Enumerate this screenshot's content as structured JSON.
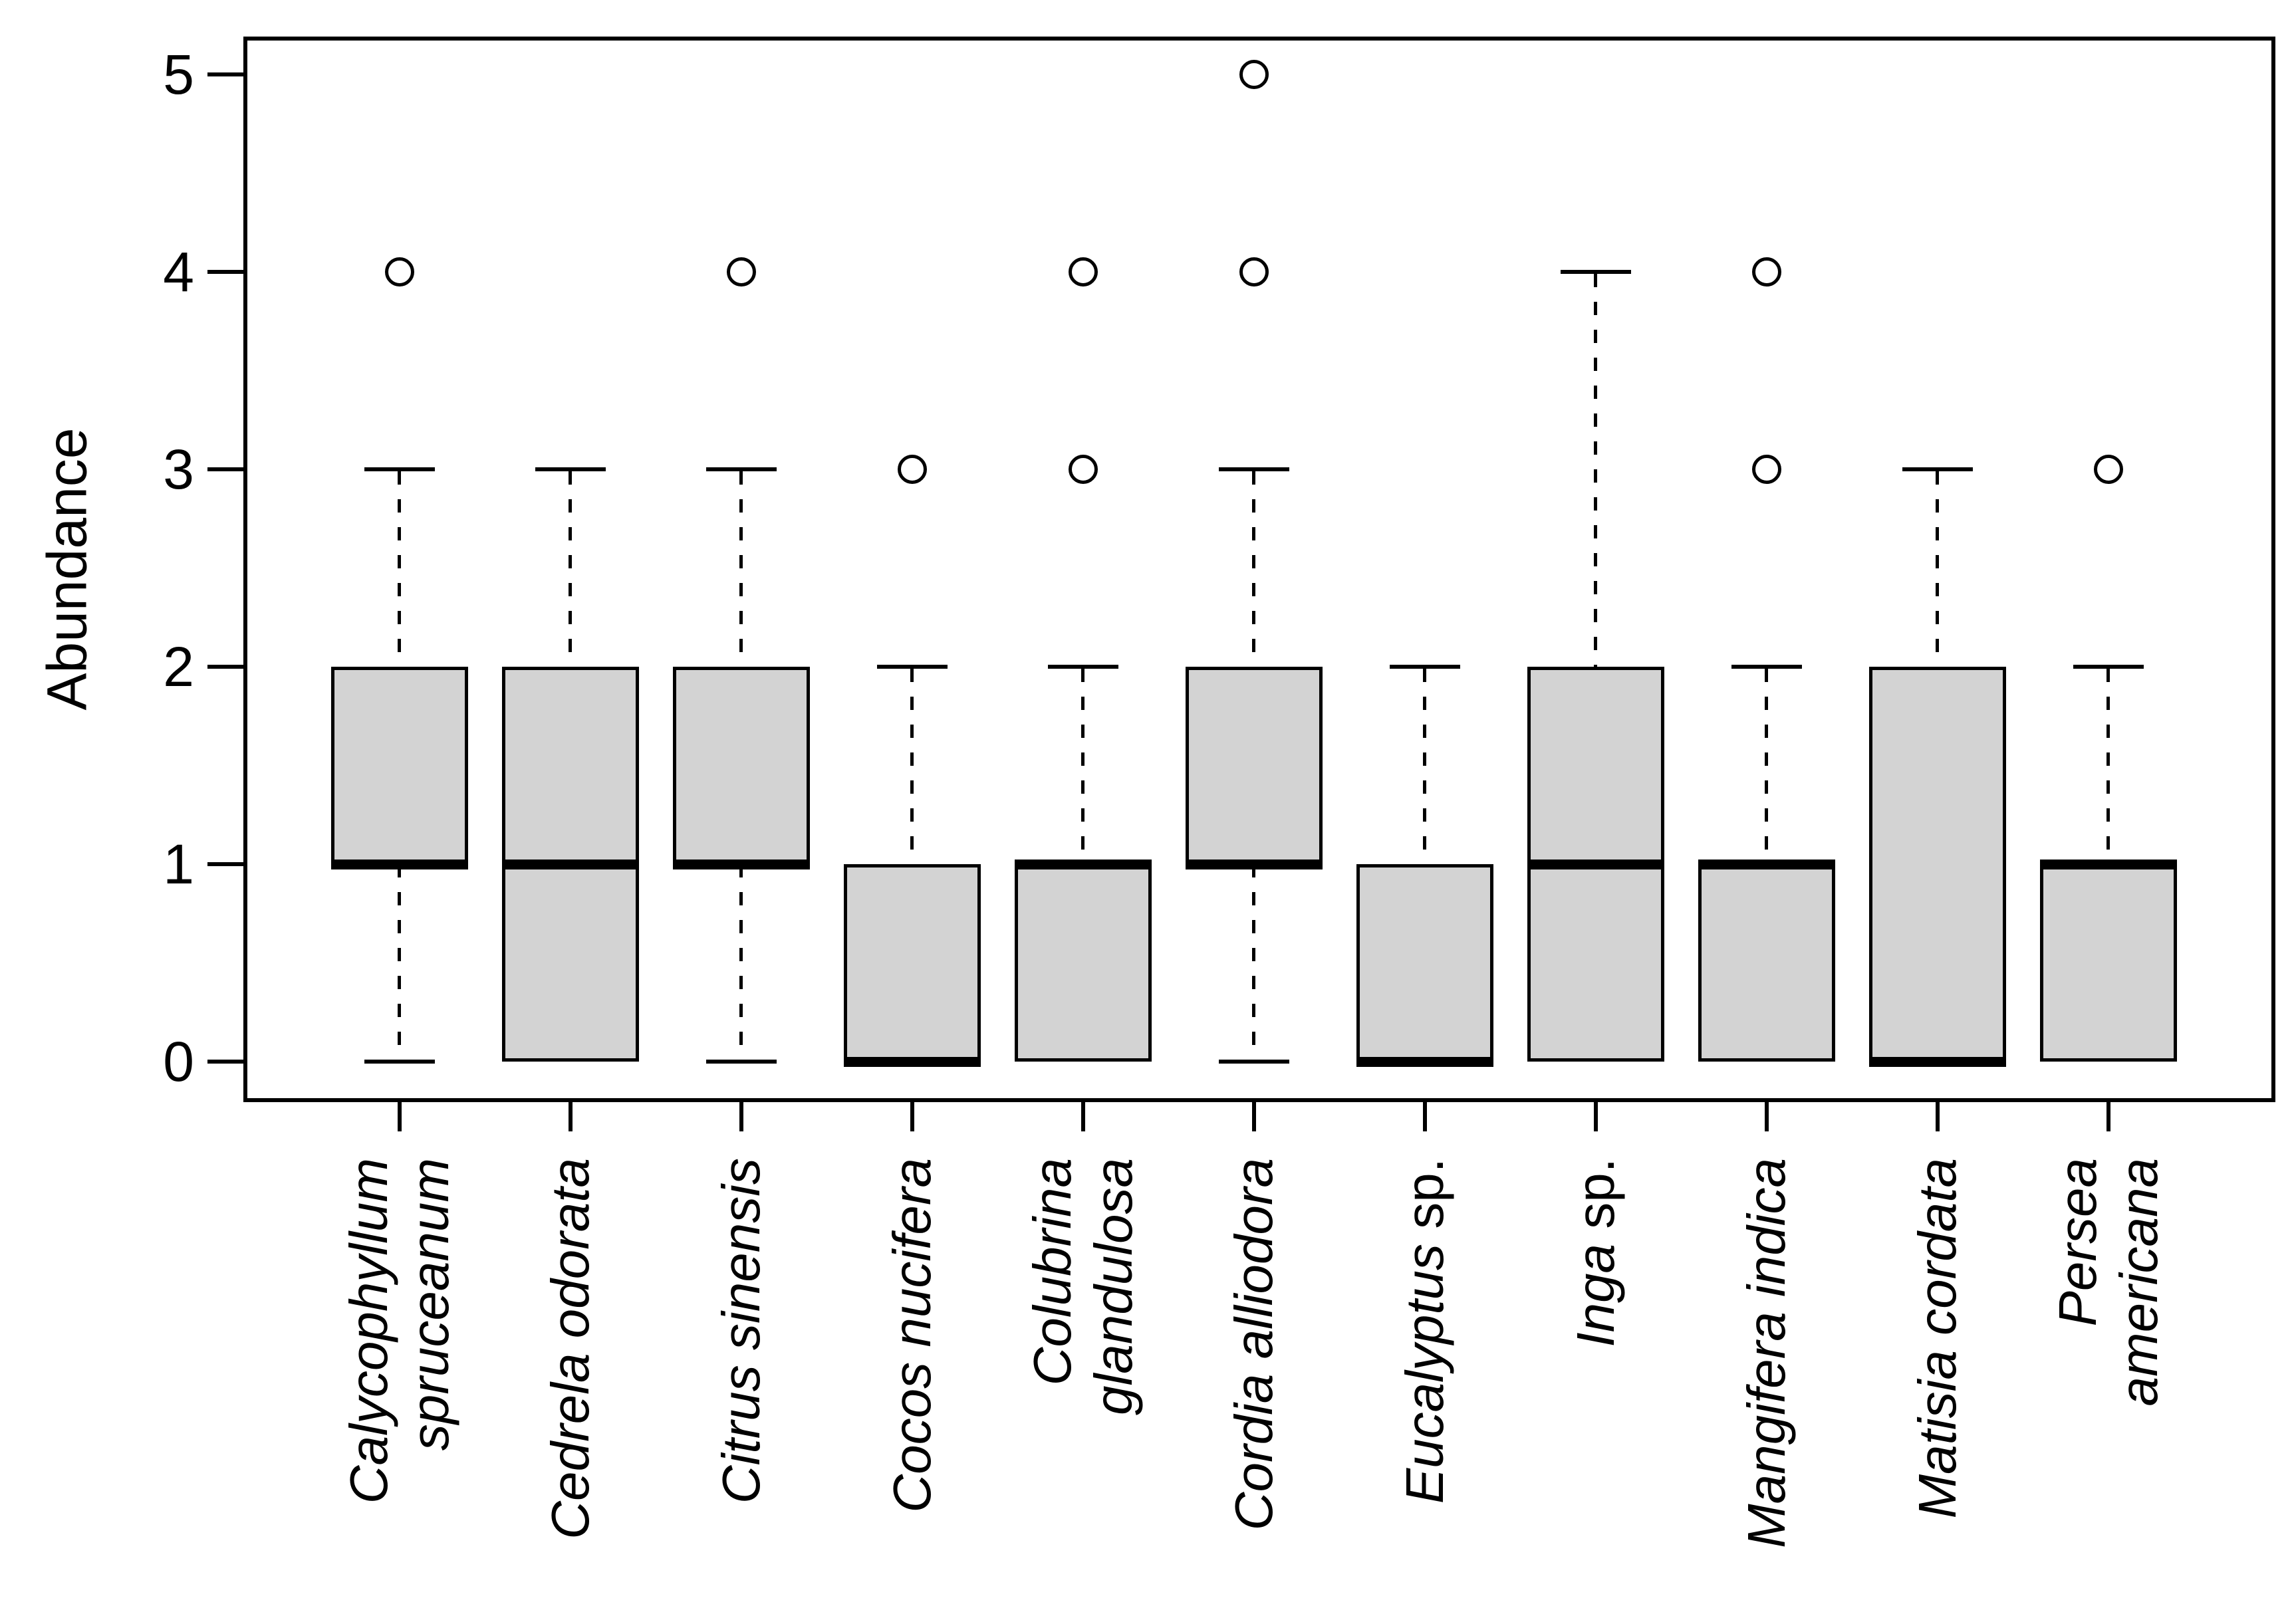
{
  "chart_data": {
    "type": "boxplot",
    "title": "",
    "xlabel": "",
    "ylabel": "Abundance",
    "ylim": [
      -0.2,
      5.2
    ],
    "yticks": [
      0,
      1,
      2,
      3,
      4,
      5
    ],
    "grid": false,
    "legend": "none",
    "box_orientation": "vertical",
    "categories": [
      "Calycophyllum spruceanum",
      "Cedrela odorata",
      "Citrus sinensis",
      "Cocos nucifera",
      "Colubrina glandulosa",
      "Cordia alliodora",
      "Eucalyptus sp.",
      "Inga sp.",
      "Mangifera indica",
      "Matisia cordata",
      "Persea americana"
    ],
    "species": [
      {
        "name": "Calycophyllum spruceanum",
        "label_lines": [
          "Calycophyllum",
          "spruceanum"
        ],
        "label_suffix": "",
        "stats": {
          "whisker_low": 0,
          "q1": 1,
          "median": 1,
          "q3": 2,
          "whisker_high": 3
        },
        "outliers": [
          4
        ]
      },
      {
        "name": "Cedrela odorata",
        "label_lines": [
          "Cedrela odorata"
        ],
        "label_suffix": "",
        "stats": {
          "whisker_low": 0,
          "q1": 0,
          "median": 1,
          "q3": 2,
          "whisker_high": 3
        },
        "outliers": []
      },
      {
        "name": "Citrus sinensis",
        "label_lines": [
          "Citrus sinensis"
        ],
        "label_suffix": "",
        "stats": {
          "whisker_low": 0,
          "q1": 1,
          "median": 1,
          "q3": 2,
          "whisker_high": 3
        },
        "outliers": [
          4
        ]
      },
      {
        "name": "Cocos nucifera",
        "label_lines": [
          "Cocos nucifera"
        ],
        "label_suffix": "",
        "stats": {
          "whisker_low": 0,
          "q1": 0,
          "median": 0,
          "q3": 1,
          "whisker_high": 2
        },
        "outliers": [
          3
        ]
      },
      {
        "name": "Colubrina glandulosa",
        "label_lines": [
          "Colubrina",
          "glandulosa"
        ],
        "label_suffix": "",
        "stats": {
          "whisker_low": 0,
          "q1": 0,
          "median": 1,
          "q3": 1,
          "whisker_high": 2
        },
        "outliers": [
          3,
          4
        ]
      },
      {
        "name": "Cordia alliodora",
        "label_lines": [
          "Cordia alliodora"
        ],
        "label_suffix": "",
        "stats": {
          "whisker_low": 0,
          "q1": 1,
          "median": 1,
          "q3": 2,
          "whisker_high": 3
        },
        "outliers": [
          4,
          5
        ]
      },
      {
        "name": "Eucalyptus sp.",
        "label_lines": [
          "Eucalyptus"
        ],
        "label_suffix": " sp.",
        "stats": {
          "whisker_low": 0,
          "q1": 0,
          "median": 0,
          "q3": 1,
          "whisker_high": 2
        },
        "outliers": []
      },
      {
        "name": "Inga sp.",
        "label_lines": [
          "Inga"
        ],
        "label_suffix": " sp.",
        "stats": {
          "whisker_low": 0,
          "q1": 0,
          "median": 1,
          "q3": 2,
          "whisker_high": 4
        },
        "outliers": []
      },
      {
        "name": "Mangifera indica",
        "label_lines": [
          "Mangifera indica"
        ],
        "label_suffix": "",
        "stats": {
          "whisker_low": 0,
          "q1": 0,
          "median": 1,
          "q3": 1,
          "whisker_high": 2
        },
        "outliers": [
          3,
          4
        ]
      },
      {
        "name": "Matisia cordata",
        "label_lines": [
          "Matisia cordata"
        ],
        "label_suffix": "",
        "stats": {
          "whisker_low": 0,
          "q1": 0,
          "median": 0,
          "q3": 2,
          "whisker_high": 3
        },
        "outliers": []
      },
      {
        "name": "Persea americana",
        "label_lines": [
          "Persea",
          "americana"
        ],
        "label_suffix": "",
        "stats": {
          "whisker_low": 0,
          "q1": 0,
          "median": 1,
          "q3": 1,
          "whisker_high": 2
        },
        "outliers": [
          3
        ]
      }
    ]
  },
  "styles": {
    "box_fill": "#d3d3d3",
    "line_color": "#000000",
    "background": "#ffffff"
  }
}
